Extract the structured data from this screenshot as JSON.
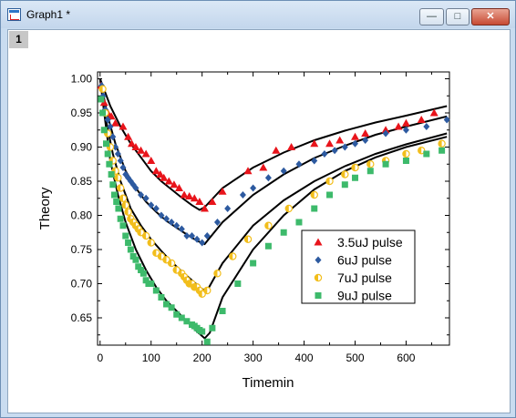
{
  "window": {
    "title": "Graph1 *",
    "layer_label": "1",
    "min_icon": "minimize-icon",
    "max_icon": "maximize-icon",
    "close_icon": "close-icon"
  },
  "chart_data": {
    "type": "scatter",
    "xlabel": "Timemin",
    "ylabel": "Theory",
    "xlim": [
      -5,
      685
    ],
    "ylim": [
      0.61,
      1.01
    ],
    "xticks": [
      0,
      100,
      200,
      300,
      400,
      500,
      600
    ],
    "yticks": [
      0.65,
      0.7,
      0.75,
      0.8,
      0.85,
      0.9,
      0.95,
      1.0
    ],
    "legend_position": "lower-right",
    "series": [
      {
        "name": "3.5uJ pulse",
        "marker": "triangle",
        "color": "#e8141b",
        "x": [
          2,
          8,
          15,
          22,
          30,
          45,
          55,
          62,
          70,
          80,
          90,
          100,
          110,
          118,
          125,
          135,
          145,
          155,
          165,
          175,
          185,
          195,
          205,
          220,
          240,
          290,
          320,
          345,
          375,
          420,
          450,
          470,
          500,
          520,
          560,
          585,
          600,
          630,
          655
        ],
        "y": [
          0.99,
          0.965,
          0.95,
          0.945,
          0.935,
          0.93,
          0.915,
          0.905,
          0.9,
          0.895,
          0.89,
          0.88,
          0.865,
          0.86,
          0.855,
          0.85,
          0.845,
          0.84,
          0.83,
          0.828,
          0.825,
          0.82,
          0.81,
          0.82,
          0.835,
          0.865,
          0.87,
          0.895,
          0.9,
          0.905,
          0.905,
          0.91,
          0.915,
          0.92,
          0.925,
          0.93,
          0.935,
          0.94,
          0.95
        ]
      },
      {
        "name": "6uJ pulse",
        "marker": "diamond",
        "color": "#2d5aa0",
        "x": [
          3,
          6,
          10,
          15,
          20,
          25,
          30,
          35,
          40,
          45,
          50,
          55,
          60,
          65,
          70,
          80,
          90,
          100,
          110,
          120,
          130,
          140,
          150,
          160,
          170,
          180,
          190,
          200,
          210,
          230,
          250,
          280,
          300,
          330,
          360,
          390,
          420,
          440,
          460,
          480,
          500,
          520,
          560,
          600,
          640,
          680
        ],
        "y": [
          0.99,
          0.975,
          0.955,
          0.94,
          0.93,
          0.915,
          0.9,
          0.89,
          0.88,
          0.87,
          0.86,
          0.855,
          0.85,
          0.845,
          0.84,
          0.83,
          0.825,
          0.815,
          0.81,
          0.8,
          0.795,
          0.79,
          0.785,
          0.78,
          0.77,
          0.77,
          0.765,
          0.76,
          0.77,
          0.79,
          0.81,
          0.83,
          0.84,
          0.855,
          0.865,
          0.875,
          0.88,
          0.89,
          0.895,
          0.9,
          0.905,
          0.91,
          0.92,
          0.925,
          0.93,
          0.94
        ]
      },
      {
        "name": "7uJ pulse",
        "marker": "half-circle",
        "color": "#f2be1c",
        "x": [
          5,
          10,
          15,
          20,
          25,
          30,
          35,
          40,
          45,
          50,
          55,
          60,
          65,
          70,
          75,
          80,
          90,
          100,
          110,
          120,
          130,
          140,
          150,
          160,
          165,
          170,
          175,
          180,
          185,
          190,
          195,
          200,
          210,
          230,
          260,
          290,
          330,
          370,
          420,
          450,
          480,
          500,
          530,
          560,
          600,
          630,
          670
        ],
        "y": [
          0.985,
          0.95,
          0.92,
          0.9,
          0.88,
          0.865,
          0.855,
          0.84,
          0.825,
          0.815,
          0.805,
          0.795,
          0.79,
          0.785,
          0.78,
          0.775,
          0.77,
          0.76,
          0.745,
          0.74,
          0.735,
          0.73,
          0.72,
          0.715,
          0.71,
          0.705,
          0.7,
          0.7,
          0.695,
          0.695,
          0.69,
          0.685,
          0.69,
          0.715,
          0.74,
          0.765,
          0.785,
          0.81,
          0.83,
          0.85,
          0.86,
          0.87,
          0.875,
          0.88,
          0.89,
          0.895,
          0.905
        ]
      },
      {
        "name": "9uJ pulse",
        "marker": "square",
        "color": "#3dba6b",
        "x": [
          2,
          5,
          8,
          12,
          15,
          18,
          22,
          25,
          28,
          32,
          36,
          40,
          45,
          50,
          55,
          60,
          65,
          70,
          75,
          80,
          85,
          90,
          95,
          100,
          110,
          120,
          130,
          140,
          150,
          160,
          170,
          180,
          185,
          190,
          195,
          200,
          210,
          220,
          240,
          270,
          300,
          330,
          360,
          390,
          420,
          450,
          480,
          500,
          530,
          560,
          600,
          640,
          670
        ],
        "y": [
          0.97,
          0.95,
          0.925,
          0.905,
          0.89,
          0.875,
          0.86,
          0.845,
          0.83,
          0.82,
          0.81,
          0.795,
          0.785,
          0.77,
          0.76,
          0.75,
          0.74,
          0.735,
          0.725,
          0.72,
          0.715,
          0.705,
          0.7,
          0.7,
          0.69,
          0.68,
          0.67,
          0.665,
          0.655,
          0.65,
          0.645,
          0.64,
          0.638,
          0.635,
          0.632,
          0.63,
          0.615,
          0.635,
          0.66,
          0.7,
          0.73,
          0.755,
          0.775,
          0.79,
          0.81,
          0.83,
          0.845,
          0.855,
          0.865,
          0.875,
          0.88,
          0.89,
          0.895
        ]
      }
    ],
    "fit_curves": [
      {
        "for": "3.5uJ pulse",
        "x": [
          0,
          20,
          40,
          60,
          80,
          100,
          120,
          140,
          160,
          180,
          195,
          205,
          240,
          300,
          360,
          420,
          480,
          540,
          600,
          680
        ],
        "y": [
          1.0,
          0.96,
          0.93,
          0.905,
          0.885,
          0.865,
          0.85,
          0.838,
          0.826,
          0.815,
          0.808,
          0.812,
          0.84,
          0.87,
          0.892,
          0.91,
          0.924,
          0.936,
          0.946,
          0.96
        ]
      },
      {
        "for": "6uJ pulse",
        "x": [
          0,
          15,
          30,
          50,
          70,
          90,
          110,
          130,
          150,
          170,
          190,
          205,
          240,
          300,
          360,
          420,
          480,
          540,
          600,
          680
        ],
        "y": [
          1.0,
          0.945,
          0.905,
          0.865,
          0.84,
          0.82,
          0.805,
          0.792,
          0.782,
          0.772,
          0.763,
          0.758,
          0.79,
          0.83,
          0.86,
          0.884,
          0.902,
          0.918,
          0.93,
          0.945
        ]
      },
      {
        "for": "7uJ pulse",
        "x": [
          0,
          10,
          25,
          40,
          60,
          80,
          100,
          120,
          140,
          160,
          180,
          200,
          210,
          240,
          300,
          360,
          420,
          480,
          540,
          600,
          680
        ],
        "y": [
          1.0,
          0.945,
          0.89,
          0.85,
          0.81,
          0.785,
          0.765,
          0.748,
          0.732,
          0.718,
          0.705,
          0.692,
          0.69,
          0.73,
          0.785,
          0.822,
          0.85,
          0.872,
          0.89,
          0.904,
          0.92
        ]
      },
      {
        "for": "9uJ pulse",
        "x": [
          0,
          8,
          20,
          35,
          50,
          70,
          90,
          110,
          130,
          150,
          170,
          190,
          205,
          215,
          240,
          300,
          360,
          420,
          480,
          540,
          600,
          680
        ],
        "y": [
          1.0,
          0.95,
          0.88,
          0.83,
          0.79,
          0.75,
          0.72,
          0.695,
          0.675,
          0.66,
          0.645,
          0.63,
          0.62,
          0.628,
          0.68,
          0.75,
          0.8,
          0.838,
          0.865,
          0.885,
          0.9,
          0.915
        ]
      }
    ]
  }
}
